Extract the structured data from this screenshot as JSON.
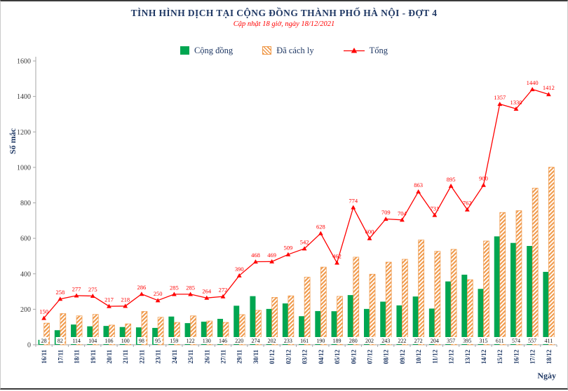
{
  "colors": {
    "green": "#00A651",
    "orange": "#F09A4B",
    "red": "#FF0000",
    "navy": "#1F3864",
    "axis": "#A6A6A6"
  },
  "header": {
    "title": "TÌNH HÌNH DỊCH TẠI CỘNG ĐỒNG THÀNH PHỐ HÀ NỘI - ĐỢT 4",
    "subtitle": "Cập nhật 18 giờ, ngày 18/12/2021"
  },
  "legend": [
    {
      "label": "Cộng đồng",
      "swatch": "green-bar"
    },
    {
      "label": "Đã cách ly",
      "swatch": "orange-hatched-bar"
    },
    {
      "label": "Tổng",
      "swatch": "red-line-triangle"
    }
  ],
  "chart_data": {
    "type": "bar+line",
    "title": "TÌNH HÌNH DỊCH TẠI CỘNG ĐỒNG THÀNH PHỐ HÀ NỘI - ĐỢT 4",
    "subtitle": "Cập nhật 18 giờ, ngày 18/12/2021",
    "xlabel": "Ngày",
    "ylabel": "Số mắc",
    "ylim": [
      0,
      1600
    ],
    "yticks": [
      0,
      200,
      400,
      600,
      800,
      1000,
      1200,
      1400,
      1600
    ],
    "grid": false,
    "legend_position": "top",
    "bar_value_labels_position": "inside-base",
    "line_value_labels_position": "above",
    "categories": [
      "16/11",
      "17/11",
      "18/11",
      "19/11",
      "20/11",
      "21/11",
      "22/11",
      "23/11",
      "24/11",
      "25/11",
      "26/11",
      "27/11",
      "29/11",
      "30/11",
      "01/12",
      "02/12",
      "03/12",
      "04/12",
      "05/12",
      "06/12",
      "07/12",
      "08/12",
      "09/12",
      "10/12",
      "11/12",
      "12/12",
      "13/12",
      "14/12",
      "15/12",
      "16/12",
      "17/12",
      "18/12"
    ],
    "series": [
      {
        "name": "Cộng đồng",
        "type": "bar",
        "color": "#00A651",
        "values": [
          28,
          82,
          114,
          104,
          106,
          100,
          98,
          95,
          159,
          122,
          130,
          146,
          220,
          274,
          202,
          233,
          161,
          190,
          189,
          280,
          202,
          243,
          222,
          272,
          204,
          357,
          395,
          315,
          611,
          574,
          557,
          411
        ]
      },
      {
        "name": "Đã cách ly",
        "type": "bar",
        "color": "#F09A4B",
        "pattern": "diagonal-hatch",
        "values": [
          122,
          176,
          163,
          171,
          111,
          118,
          188,
          155,
          126,
          163,
          134,
          126,
          170,
          194,
          267,
          276,
          381,
          438,
          273,
          494,
          398,
          466,
          482,
          591,
          527,
          538,
          367,
          585,
          746,
          756,
          883,
          1001
        ]
      },
      {
        "name": "Tổng",
        "type": "line",
        "color": "#FF0000",
        "marker": "triangle",
        "values": [
          150,
          258,
          277,
          275,
          217,
          218,
          286,
          250,
          285,
          285,
          264,
          272,
          390,
          468,
          469,
          509,
          542,
          628,
          462,
          774,
          600,
          709,
          704,
          863,
          731,
          895,
          762,
          900,
          1357,
          1330,
          1440,
          1412
        ]
      }
    ]
  }
}
